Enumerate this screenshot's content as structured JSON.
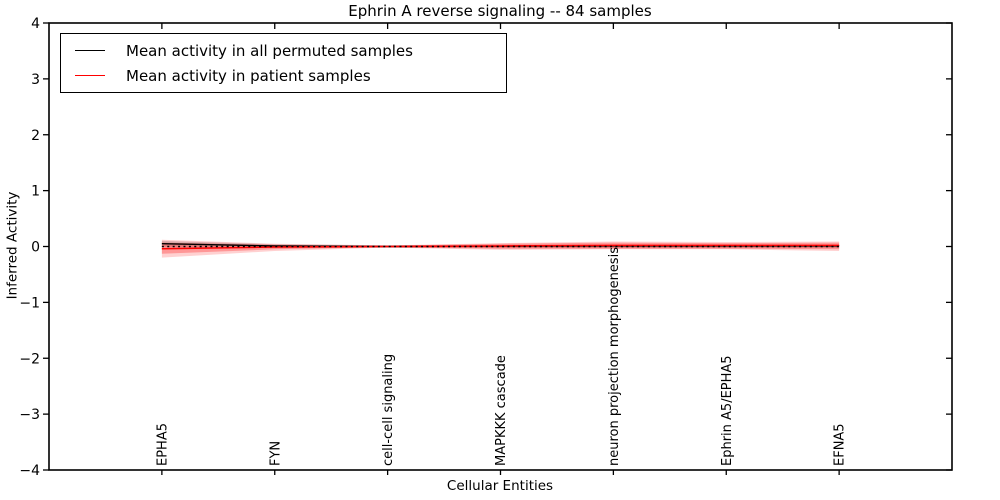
{
  "colors": {
    "axis": "#000000",
    "background": "#ffffff",
    "permuted_line": "#000000",
    "patient_line": "#ff0000",
    "patient_band": "#ff0000",
    "permuted_band": "#888888"
  },
  "chart_data": {
    "type": "line",
    "title": "Ephrin A  reverse signaling -- 84 samples",
    "xlabel": "Cellular Entities",
    "ylabel": "Inferred Activity",
    "xlim": [
      -1,
      7
    ],
    "ylim": [
      -4,
      4
    ],
    "yticks": [
      4,
      3,
      2,
      1,
      0,
      -1,
      -2,
      -3,
      -4
    ],
    "grid": false,
    "categories": [
      "EPHA5",
      "FYN",
      "cell-cell signaling",
      "MAPKKK cascade",
      "neuron projection morphogenesis",
      "Ephrin A5/EPHA5",
      "EFNA5"
    ],
    "series": [
      {
        "name": "Mean activity in all permuted samples",
        "color": "#000000",
        "style": "solid",
        "width": 1.3,
        "values": [
          0.05,
          0.01,
          0.0,
          0.005,
          0.01,
          0.01,
          0.01
        ]
      },
      {
        "name": "Mean activity in patient samples",
        "color": "#ff0000",
        "style": "solid",
        "width": 1.5,
        "values": [
          -0.04,
          -0.01,
          0.0,
          0.01,
          0.02,
          0.02,
          0.02
        ]
      },
      {
        "name": "zero-reference",
        "color": "#000000",
        "style": "dotted",
        "width": 1.6,
        "values": [
          0,
          0,
          0,
          0,
          0,
          0,
          0
        ]
      }
    ],
    "bands": [
      {
        "name": "permuted-std-band",
        "color": "#888888",
        "opacity": 0.35,
        "upper": [
          0.1,
          0.04,
          0.02,
          0.03,
          0.03,
          0.03,
          0.03
        ],
        "lower": [
          -0.01,
          -0.03,
          -0.02,
          -0.03,
          -0.03,
          -0.03,
          -0.03
        ]
      },
      {
        "name": "patient-std-band-outer",
        "color": "#ff0000",
        "opacity": 0.18,
        "upper": [
          0.12,
          0.05,
          0.02,
          0.06,
          0.09,
          0.08,
          0.09
        ],
        "lower": [
          -0.2,
          -0.08,
          -0.02,
          -0.06,
          -0.05,
          -0.05,
          -0.08
        ]
      },
      {
        "name": "patient-std-band-inner",
        "color": "#ff0000",
        "opacity": 0.28,
        "upper": [
          0.07,
          0.03,
          0.015,
          0.05,
          0.07,
          0.06,
          0.07
        ],
        "lower": [
          -0.13,
          -0.05,
          -0.015,
          -0.04,
          -0.04,
          -0.04,
          -0.05
        ]
      }
    ],
    "legend": {
      "position": "upper left",
      "entries": [
        {
          "label": "Mean activity in all permuted samples",
          "color": "#000000"
        },
        {
          "label": "Mean activity in patient samples",
          "color": "#ff0000"
        }
      ]
    }
  }
}
